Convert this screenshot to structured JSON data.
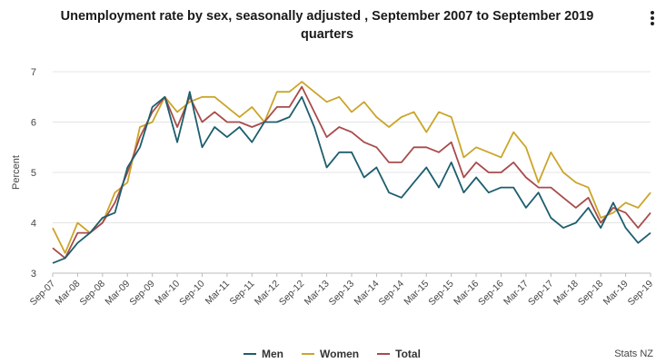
{
  "title_line1": "Unemployment rate by sex, seasonally adjusted , September 2007 to September 2019",
  "title_line2": "quarters",
  "menu_icon": "vertical-ellipsis-icon",
  "source": "Stats NZ",
  "chart_data": {
    "type": "line",
    "ylabel": "Percent",
    "xlabel": "",
    "ylim": [
      3,
      7
    ],
    "yticks": [
      3,
      4,
      5,
      6,
      7
    ],
    "grid": true,
    "legend_position": "bottom-center",
    "x_tick_labels": [
      "Sep-07",
      "Mar-08",
      "Sep-08",
      "Mar-09",
      "Sep-09",
      "Mar-10",
      "Sep-10",
      "Mar-11",
      "Sep-11",
      "Mar-12",
      "Sep-12",
      "Mar-13",
      "Sep-13",
      "Mar-14",
      "Sep-14",
      "Mar-15",
      "Sep-15",
      "Mar-16",
      "Sep-16",
      "Mar-17",
      "Sep-17",
      "Mar-18",
      "Sep-18",
      "Mar-19",
      "Sep-19"
    ],
    "series": [
      {
        "name": "Men",
        "color": "#1d5e6e",
        "values": [
          3.2,
          3.3,
          3.6,
          3.8,
          4.1,
          4.2,
          5.1,
          5.5,
          6.3,
          6.5,
          5.6,
          6.6,
          5.5,
          5.9,
          5.7,
          5.9,
          5.6,
          6.0,
          6.0,
          6.1,
          6.5,
          5.9,
          5.1,
          5.4,
          5.4,
          4.9,
          5.1,
          4.6,
          4.5,
          4.8,
          5.1,
          4.7,
          5.2,
          4.6,
          4.9,
          4.6,
          4.7,
          4.7,
          4.3,
          4.6,
          4.1,
          3.9,
          4.0,
          4.3,
          3.9,
          4.4,
          3.9,
          3.6,
          3.8
        ]
      },
      {
        "name": "Women",
        "color": "#cba52a",
        "values": [
          3.9,
          3.4,
          4.0,
          3.8,
          4.0,
          4.6,
          4.8,
          5.9,
          6.0,
          6.5,
          6.2,
          6.4,
          6.5,
          6.5,
          6.3,
          6.1,
          6.3,
          6.0,
          6.6,
          6.6,
          6.8,
          6.6,
          6.4,
          6.5,
          6.2,
          6.4,
          6.1,
          5.9,
          6.1,
          6.2,
          5.8,
          6.2,
          6.1,
          5.3,
          5.5,
          5.4,
          5.3,
          5.8,
          5.5,
          4.8,
          5.4,
          5.0,
          4.8,
          4.7,
          4.1,
          4.2,
          4.4,
          4.3,
          4.6
        ]
      },
      {
        "name": "Total",
        "color": "#a84b4b",
        "values": [
          3.5,
          3.3,
          3.8,
          3.8,
          4.0,
          4.4,
          5.0,
          5.7,
          6.2,
          6.5,
          5.9,
          6.5,
          6.0,
          6.2,
          6.0,
          6.0,
          5.9,
          6.0,
          6.3,
          6.3,
          6.7,
          6.2,
          5.7,
          5.9,
          5.8,
          5.6,
          5.5,
          5.2,
          5.2,
          5.5,
          5.5,
          5.4,
          5.6,
          4.9,
          5.2,
          5.0,
          5.0,
          5.2,
          4.9,
          4.7,
          4.7,
          4.5,
          4.3,
          4.5,
          4.0,
          4.3,
          4.2,
          3.9,
          4.2
        ]
      }
    ]
  }
}
